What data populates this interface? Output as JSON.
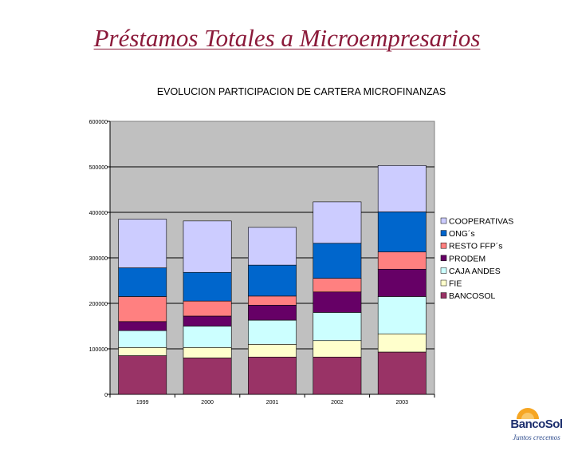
{
  "slide": {
    "title": "Préstamos Totales a Microempresarios"
  },
  "logo": {
    "name": "BancoSol",
    "slogan": "Juntos crecemos"
  },
  "colors": {
    "title": "#8b1a3a",
    "plot_background": "#c0c0c0",
    "gridline": "#000000"
  },
  "chart_data": {
    "type": "bar",
    "stacked": true,
    "title": "EVOLUCION PARTICIPACION DE CARTERA MICROFINANZAS",
    "xlabel": "",
    "ylabel": "",
    "categories": [
      "1999",
      "2000",
      "2001",
      "2002",
      "2003"
    ],
    "ylim": [
      0,
      600000
    ],
    "yticks": [
      0,
      100000,
      200000,
      300000,
      400000,
      500000,
      600000
    ],
    "ytick_labels": [
      "0",
      "100000",
      "200000",
      "300000",
      "400000",
      "500000",
      "600000"
    ],
    "grid": true,
    "legend_position": "right",
    "series": [
      {
        "name": "BANCOSOL",
        "color": "#993366",
        "values": [
          85000,
          80000,
          82000,
          82000,
          93000
        ]
      },
      {
        "name": "FIE",
        "color": "#ffffcc",
        "values": [
          18000,
          23000,
          28000,
          36000,
          40000
        ]
      },
      {
        "name": "CAJA ANDES",
        "color": "#ccffff",
        "values": [
          37000,
          47000,
          53000,
          62000,
          82000
        ]
      },
      {
        "name": "PRODEM",
        "color": "#660066",
        "values": [
          20000,
          22000,
          33000,
          45000,
          60000
        ]
      },
      {
        "name": "RESTO FFP´s",
        "color": "#ff8080",
        "values": [
          55000,
          33000,
          20000,
          30000,
          38000
        ]
      },
      {
        "name": "ONG´s",
        "color": "#0066cc",
        "values": [
          63000,
          63000,
          68000,
          77000,
          88000
        ]
      },
      {
        "name": "COOPERATIVAS",
        "color": "#ccccff",
        "values": [
          107000,
          113000,
          83000,
          91000,
          102000
        ]
      }
    ]
  }
}
